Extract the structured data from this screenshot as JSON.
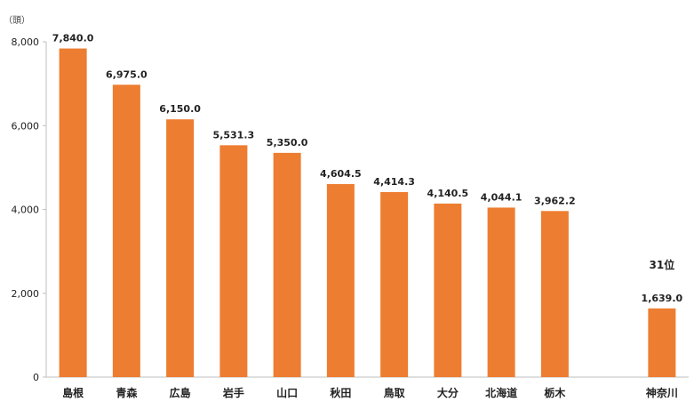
{
  "chart_data": {
    "type": "bar",
    "title": "",
    "xlabel": "",
    "ylabel": "（頭）",
    "ylim": [
      0,
      8000
    ],
    "yticks": [
      0,
      2000,
      4000,
      6000,
      8000
    ],
    "ytick_labels": [
      "0",
      "2,000",
      "4,000",
      "6,000",
      "8,000"
    ],
    "grid": false,
    "legend": "none",
    "bar_color": "#ED7D31",
    "categories": [
      "島根",
      "青森",
      "広島",
      "岩手",
      "山口",
      "秋田",
      "鳥取",
      "大分",
      "北海道",
      "栃木",
      "",
      "神奈川"
    ],
    "values": [
      7840.0,
      6975.0,
      6150.0,
      5531.3,
      5350.0,
      4604.5,
      4414.3,
      4140.5,
      4044.1,
      3962.2,
      null,
      1639.0
    ],
    "value_labels": [
      "7,840.0",
      "6,975.0",
      "6,150.0",
      "5,531.3",
      "5,350.0",
      "4,604.5",
      "4,414.3",
      "4,140.5",
      "4,044.1",
      "3,962.2",
      "",
      "1,639.0"
    ],
    "annotations": [
      {
        "category": "神奈川",
        "text": "31位"
      }
    ]
  }
}
